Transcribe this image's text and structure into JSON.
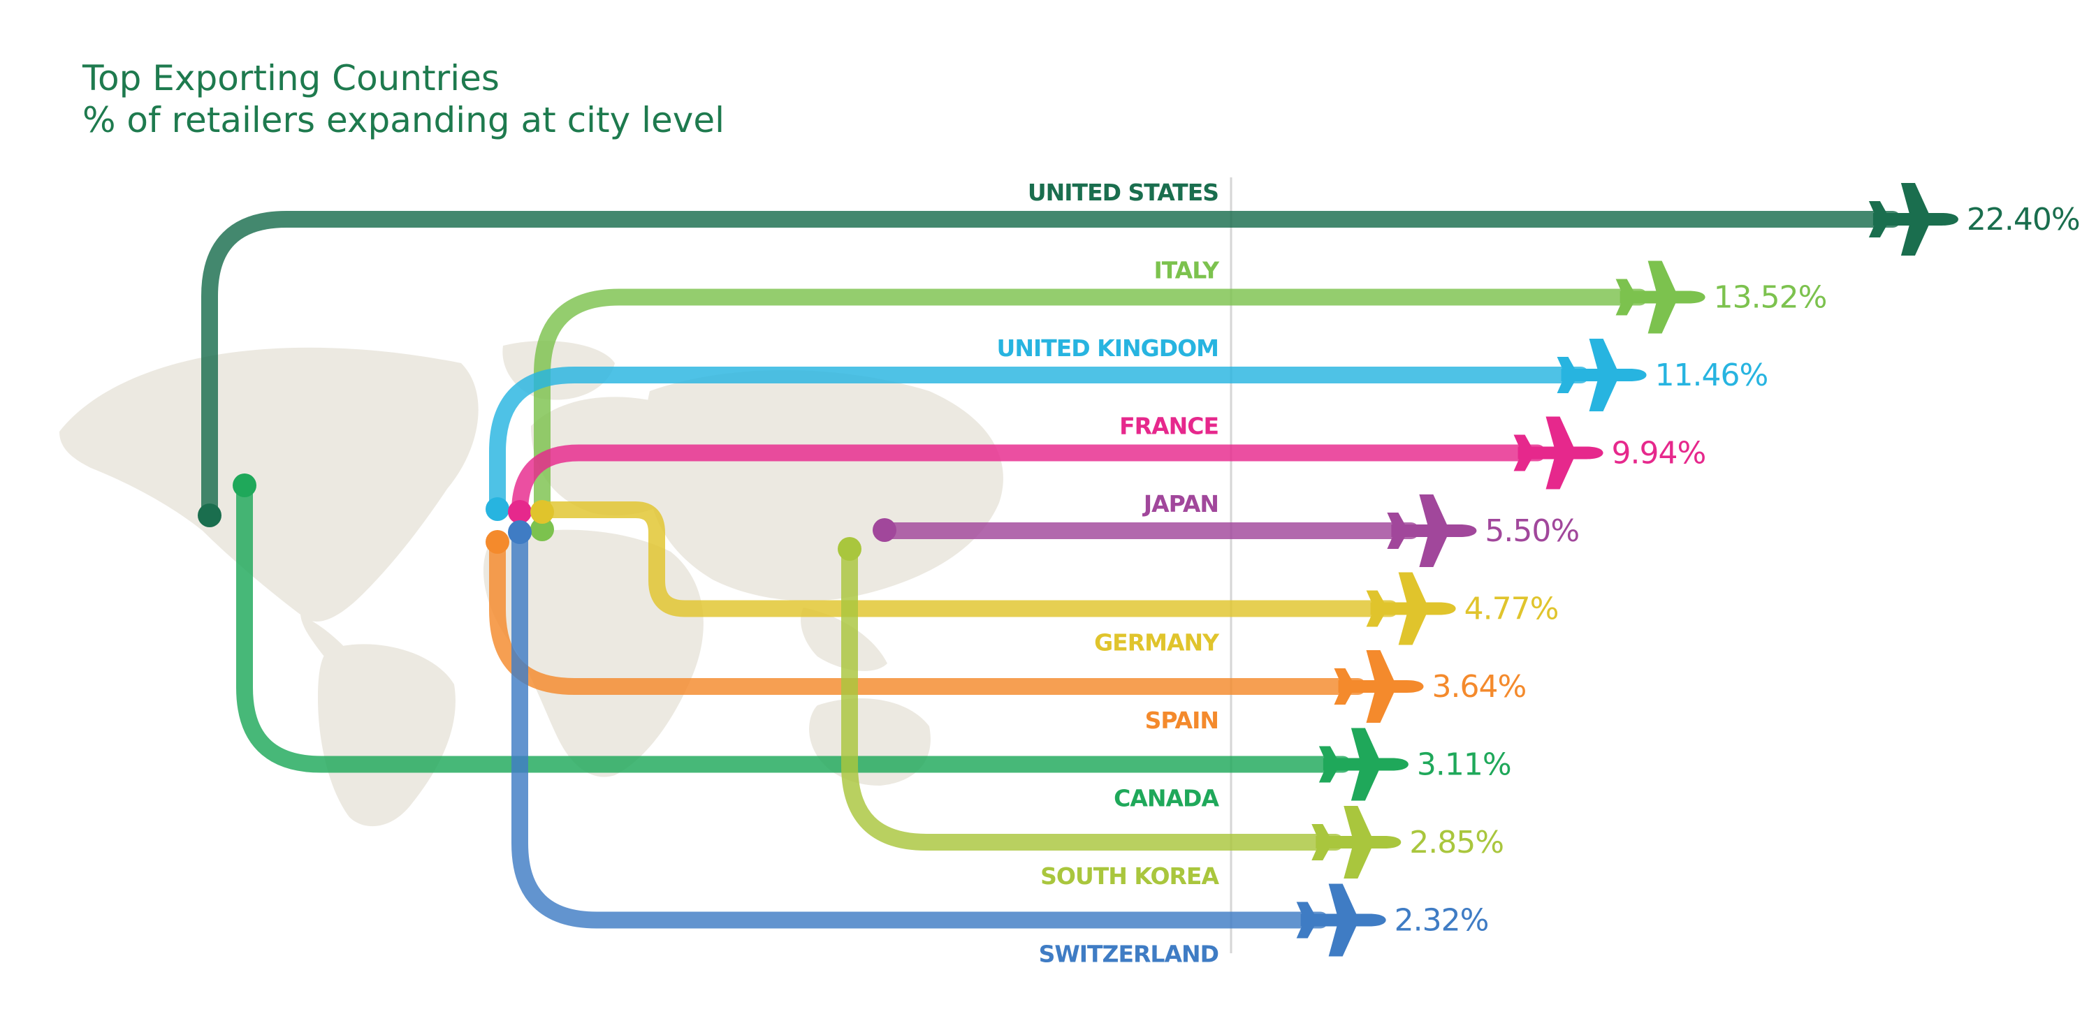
{
  "title": "Top Exporting Countries",
  "subtitle": "% of retailers expanding at city level",
  "chart_data": {
    "type": "bar",
    "title": "Top Exporting Countries",
    "subtitle": "% of retailers expanding at city level",
    "series": [
      {
        "values": [
          22.4,
          13.52,
          11.46,
          9.94,
          5.5,
          4.77,
          3.64,
          3.11,
          2.85,
          2.32
        ]
      }
    ],
    "categories": [
      "UNITED STATES",
      "ITALY",
      "UNITED KINGDOM",
      "FRANCE",
      "JAPAN",
      "GERMANY",
      "SPAIN",
      "CANADA",
      "SOUTH KOREA",
      "SWITZERLAND"
    ],
    "value_labels": [
      "22.40%",
      "13.52%",
      "11.46%",
      "9.94%",
      "5.50%",
      "4.77%",
      "3.64%",
      "3.11%",
      "2.85%",
      "2.32%"
    ],
    "colors": [
      "#1a6e4e",
      "#7cc24e",
      "#27b4e0",
      "#e6288c",
      "#a1479b",
      "#e0c42c",
      "#f48a2c",
      "#1fa85a",
      "#a9c63d",
      "#3f7cc4"
    ],
    "label_position": [
      "above",
      "above",
      "above",
      "above",
      "above",
      "below",
      "below",
      "below",
      "below",
      "below"
    ],
    "grid": false,
    "legend": "none"
  }
}
